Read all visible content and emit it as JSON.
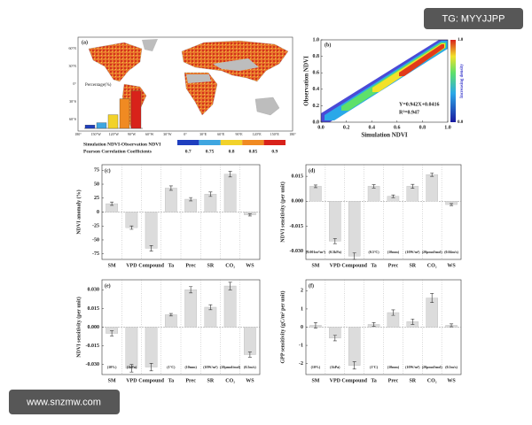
{
  "watermarks": [
    "TG: MYYJJPP",
    "www.snzmw.com"
  ],
  "chart_data": [
    {
      "type": "map",
      "label": "(a)",
      "lat_ticks": [
        "60°N",
        "30°N",
        "0°",
        "30°S",
        "60°S"
      ],
      "lon_ticks": [
        "180°",
        "150°W",
        "120°W",
        "90°W",
        "60°W",
        "30°W",
        "0°",
        "30°E",
        "60°E",
        "90°E",
        "120°E",
        "150°E",
        "180°"
      ],
      "colorbar_title": [
        "Simulation NDVI-Observation NDVI",
        "Pearson Correlation Coefficients"
      ],
      "colorbar": {
        "ticks": [
          0.7,
          0.75,
          0.8,
          0.85,
          0.9
        ],
        "colors": [
          "#1f3fbf",
          "#3fa6e0",
          "#f2d22a",
          "#f08a22",
          "#d8221a"
        ]
      },
      "inset": {
        "type": "bar",
        "title": "Percentage(%)",
        "values": [
          3,
          5,
          12,
          26,
          33
        ],
        "colors": [
          "#1f3fbf",
          "#3fa6e0",
          "#f2d22a",
          "#f08a22",
          "#d8221a"
        ],
        "ylim": [
          0,
          35
        ]
      }
    },
    {
      "type": "density",
      "label": "(b)",
      "x_label": "Simulation NDVI",
      "y_label": "Observation NDVI",
      "xlim": [
        0,
        1
      ],
      "ylim": [
        0,
        1
      ],
      "xticks": [
        {
          "value": 0,
          "label": "0.0"
        },
        0.2,
        0.4,
        0.6,
        0.8,
        {
          "value": 1,
          "label": "1.0"
        }
      ],
      "yticks": [
        {
          "value": 0,
          "label": "0.0"
        },
        0.2,
        0.4,
        0.6,
        0.8,
        {
          "value": 1,
          "label": "1.0"
        }
      ],
      "annotations": [
        "Y=0.942X+0.0416",
        "R²=0.947"
      ],
      "colorbar_label": "Increasing density",
      "colorbar_ticks": [
        {
          "value": 0,
          "label": "0.0"
        },
        {
          "value": 1,
          "label": "1.0"
        }
      ]
    },
    {
      "type": "bar",
      "label": "(c)",
      "y_label": "NDVI anomaly (%)",
      "categories": [
        "SM",
        "VPD",
        "Compound",
        "Ta",
        "Prec",
        "SR",
        "CO₂",
        "WS"
      ],
      "values": [
        15,
        -28,
        -65,
        43,
        23,
        32,
        68,
        -5
      ],
      "errors": [
        3,
        3,
        5,
        4,
        3,
        4,
        5,
        2
      ],
      "ylim": [
        -85,
        85
      ],
      "yticks": [
        -75,
        -50,
        -25,
        0,
        25,
        50,
        75
      ],
      "color": "#dcdcdc"
    },
    {
      "type": "bar",
      "label": "(d)",
      "y_label": "NDVI sensitivity (per unit)",
      "categories": [
        "SM",
        "VPD",
        "Compound",
        "Ta",
        "Prec",
        "SR",
        "CO₂",
        "WS"
      ],
      "values": [
        0.009,
        -0.024,
        -0.033,
        0.009,
        0.003,
        0.009,
        0.016,
        -0.002
      ],
      "errors": [
        0.0008,
        0.0015,
        0.002,
        0.001,
        0.0008,
        0.0012,
        0.001,
        0.0006
      ],
      "unit_labels": [
        "(0.001m³/m³)",
        "(0.5kPa)",
        null,
        "(0.5°C)",
        "(10mm)",
        "(10W/m²)",
        "(20μmol/mol)",
        "(0.04m/s)"
      ],
      "ylim": [
        -0.035,
        0.022
      ],
      "yticks": [
        {
          "value": -0.03,
          "label": "-0.030"
        },
        -0.015,
        {
          "value": 0,
          "label": "0.000"
        },
        0.015
      ],
      "color": "#dcdcdc"
    },
    {
      "type": "bar",
      "label": "(e)",
      "y_label": "NDVI sensitivity (per unit)",
      "categories": [
        "SM",
        "VPD",
        "Compound",
        "Ta",
        "Prec",
        "SR",
        "CO₂",
        "WS"
      ],
      "values": [
        -0.005,
        -0.033,
        -0.032,
        0.01,
        0.03,
        0.016,
        0.033,
        -0.022
      ],
      "errors": [
        0.002,
        0.003,
        0.003,
        0.001,
        0.0025,
        0.002,
        0.003,
        0.002
      ],
      "unit_labels": [
        "(10%)",
        "(1kPa)",
        null,
        "(1°C)",
        "(10mm)",
        "(10W/m²)",
        "(20μmol/mol)",
        "(0.5m/s)"
      ],
      "ylim": [
        -0.038,
        0.038
      ],
      "yticks": [
        {
          "value": -0.03,
          "label": "-0.030"
        },
        -0.015,
        {
          "value": 0,
          "label": "0.000"
        },
        0.015,
        {
          "value": 0.03,
          "label": "0.030"
        }
      ],
      "color": "#dcdcdc"
    },
    {
      "type": "bar",
      "label": "(f)",
      "y_label": "GPP sensitivity (gC/m² per unit)",
      "categories": [
        "SM",
        "VPD",
        "Compound",
        "Ta",
        "Prec",
        "SR",
        "CO₂",
        "WS"
      ],
      "values": [
        0.1,
        -0.6,
        -2.1,
        0.15,
        0.8,
        0.3,
        1.6,
        0.1
      ],
      "errors": [
        0.15,
        0.15,
        0.2,
        0.1,
        0.15,
        0.15,
        0.25,
        0.08
      ],
      "unit_labels": [
        "(10%)",
        "(1kPa)",
        null,
        "(1°C)",
        "(10mm)",
        "(10W/m²)",
        "(20μmol/mol)",
        "(0.5m/s)"
      ],
      "ylim": [
        -2.6,
        2.6
      ],
      "yticks": [
        -2,
        -1,
        0,
        1,
        2
      ],
      "color": "#dcdcdc"
    }
  ]
}
